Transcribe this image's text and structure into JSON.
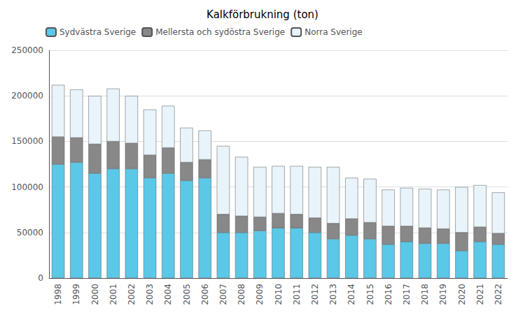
{
  "chart_data": {
    "type": "bar",
    "title": "Kalkförbrukning (ton)",
    "categories": [
      "1998",
      "1999",
      "2000",
      "2001",
      "2002",
      "2003",
      "2004",
      "2005",
      "2006",
      "2007",
      "2008",
      "2009",
      "2010",
      "2011",
      "2012",
      "2013",
      "2014",
      "2015",
      "2016",
      "2017",
      "2018",
      "2019",
      "2020",
      "2021",
      "2022"
    ],
    "series": [
      {
        "name": "Sydvästra Sverige",
        "color": "#5BC8E8",
        "values": [
          125000,
          127000,
          115000,
          120000,
          120000,
          110000,
          115000,
          107000,
          110000,
          50000,
          50000,
          52000,
          55000,
          55000,
          50000,
          43000,
          47000,
          43000,
          37000,
          40000,
          38000,
          38000,
          30000,
          40000,
          37000
        ]
      },
      {
        "name": "Mellersta och sydöstra Sverige",
        "color": "#888888",
        "values": [
          30000,
          27000,
          32000,
          30000,
          28000,
          25000,
          28000,
          20000,
          20000,
          20000,
          18000,
          15000,
          16000,
          15000,
          16000,
          17000,
          18000,
          18000,
          20000,
          17000,
          17000,
          16000,
          20000,
          16000,
          12000
        ]
      },
      {
        "name": "Norra Sverige",
        "color": "#E8F4FA",
        "values": [
          57000,
          53000,
          53000,
          58000,
          52000,
          50000,
          46000,
          38000,
          32000,
          75000,
          65000,
          55000,
          52000,
          53000,
          56000,
          62000,
          45000,
          48000,
          40000,
          42000,
          43000,
          43000,
          50000,
          46000,
          45000
        ]
      }
    ],
    "stacked": true,
    "ylim": [
      0,
      250000
    ],
    "yticks": [
      0,
      50000,
      100000,
      150000,
      200000,
      250000
    ],
    "grid": true,
    "legend": "upper left"
  }
}
